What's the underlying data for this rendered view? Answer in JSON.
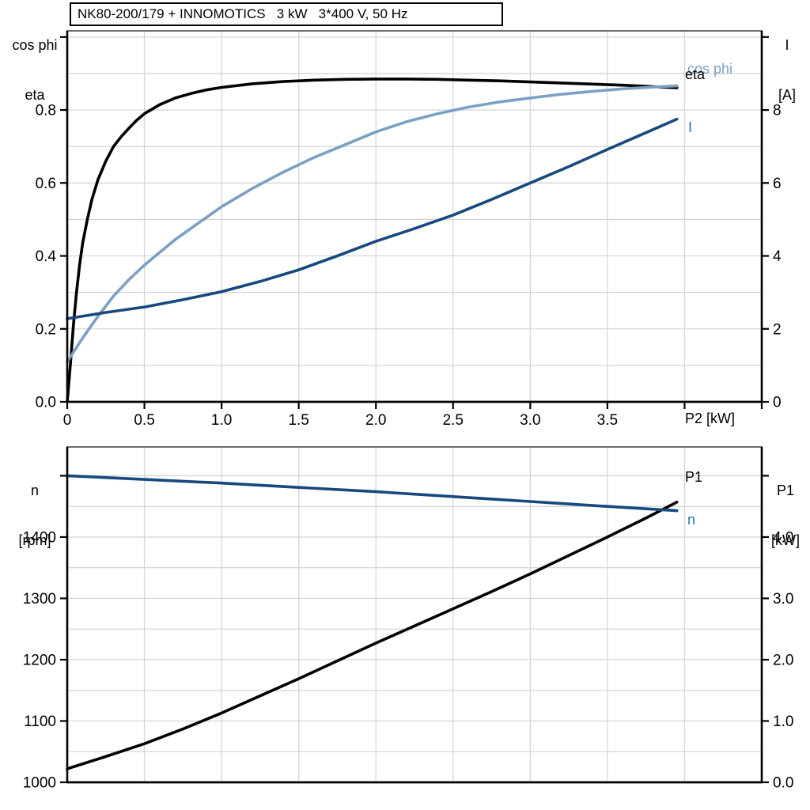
{
  "title": {
    "text": "NK80-200/179 + INNOMOTICS   3 kW   3*400 V, 50 Hz"
  },
  "colors": {
    "black": "#000000",
    "dark_blue": "#17497c",
    "light_blue": "#7aa0c4",
    "label_blue": "#2e72b0",
    "grid": "#d6d6d6",
    "axis": "#000000",
    "border_top": "#3c3c3c"
  },
  "top_chart_labels": {
    "left_axis_line1": "cos phi",
    "left_axis_line2": "eta",
    "right_axis_line1": "I",
    "right_axis_line2": "[A]",
    "x_axis": "P2 [kW]",
    "curve_cos_phi": "cos phi",
    "curve_eta": "eta",
    "curve_I": "I"
  },
  "bottom_chart_labels": {
    "left_axis_line1": "n",
    "left_axis_line2": "[rpm]",
    "right_axis_line1": "P1",
    "right_axis_line2": "[kW]",
    "curve_P1": "P1",
    "curve_n": "n"
  },
  "chart_data": [
    {
      "type": "line",
      "name": "motor-efficiency-cosphi-current",
      "xlabel": "P2 [kW]",
      "x_range": [
        0,
        4.5
      ],
      "left_axis": {
        "label": "cos phi / eta",
        "range": [
          0,
          1.017
        ]
      },
      "right_axis": {
        "label": "I [A]",
        "range": [
          0,
          10.17
        ]
      },
      "x_ticks": [
        {
          "v": 0.0,
          "label": "0"
        },
        {
          "v": 0.5,
          "label": "0.5"
        },
        {
          "v": 1.0,
          "label": "1.0"
        },
        {
          "v": 1.5,
          "label": "1.5"
        },
        {
          "v": 2.0,
          "label": "2.0"
        },
        {
          "v": 2.5,
          "label": "2.5"
        },
        {
          "v": 3.0,
          "label": "3.0"
        },
        {
          "v": 3.5,
          "label": "3.5"
        },
        {
          "v": 4.0,
          "label": ""
        },
        {
          "v": 4.5,
          "label": ""
        }
      ],
      "left_ticks": [
        {
          "v": 0.0,
          "label": "0.0"
        },
        {
          "v": 0.2,
          "label": "0.2"
        },
        {
          "v": 0.4,
          "label": "0.4"
        },
        {
          "v": 0.6,
          "label": "0.6"
        },
        {
          "v": 0.8,
          "label": "0.8"
        },
        {
          "v": 1.0,
          "label": ""
        }
      ],
      "right_ticks": [
        {
          "v": 0,
          "label": "0"
        },
        {
          "v": 2,
          "label": "2"
        },
        {
          "v": 4,
          "label": "4"
        },
        {
          "v": 6,
          "label": "6"
        },
        {
          "v": 8,
          "label": "8"
        },
        {
          "v": 10,
          "label": ""
        }
      ],
      "grid": {
        "x_step": 0.5,
        "y_left_step": 0.1
      },
      "series": [
        {
          "name": "eta",
          "axis": "left",
          "color_key": "black",
          "points": [
            [
              0,
              0
            ],
            [
              0.02,
              0.1
            ],
            [
              0.04,
              0.21
            ],
            [
              0.06,
              0.3
            ],
            [
              0.08,
              0.375
            ],
            [
              0.1,
              0.435
            ],
            [
              0.13,
              0.5
            ],
            [
              0.16,
              0.555
            ],
            [
              0.2,
              0.61
            ],
            [
              0.25,
              0.66
            ],
            [
              0.3,
              0.7
            ],
            [
              0.35,
              0.727
            ],
            [
              0.4,
              0.75
            ],
            [
              0.45,
              0.772
            ],
            [
              0.5,
              0.79
            ],
            [
              0.6,
              0.815
            ],
            [
              0.7,
              0.833
            ],
            [
              0.8,
              0.845
            ],
            [
              0.9,
              0.855
            ],
            [
              1.0,
              0.862
            ],
            [
              1.2,
              0.872
            ],
            [
              1.4,
              0.878
            ],
            [
              1.6,
              0.882
            ],
            [
              1.8,
              0.884
            ],
            [
              2.0,
              0.885
            ],
            [
              2.2,
              0.885
            ],
            [
              2.4,
              0.884
            ],
            [
              2.6,
              0.882
            ],
            [
              2.8,
              0.88
            ],
            [
              3.0,
              0.877
            ],
            [
              3.2,
              0.874
            ],
            [
              3.4,
              0.871
            ],
            [
              3.6,
              0.868
            ],
            [
              3.8,
              0.864
            ],
            [
              3.95,
              0.861
            ]
          ]
        },
        {
          "name": "cos phi",
          "axis": "left",
          "color_key": "light_blue",
          "points": [
            [
              0,
              0.11
            ],
            [
              0.1,
              0.175
            ],
            [
              0.2,
              0.235
            ],
            [
              0.3,
              0.29
            ],
            [
              0.4,
              0.335
            ],
            [
              0.5,
              0.375
            ],
            [
              0.6,
              0.41
            ],
            [
              0.7,
              0.445
            ],
            [
              0.8,
              0.475
            ],
            [
              0.9,
              0.505
            ],
            [
              1.0,
              0.535
            ],
            [
              1.2,
              0.585
            ],
            [
              1.4,
              0.63
            ],
            [
              1.6,
              0.67
            ],
            [
              1.8,
              0.705
            ],
            [
              2.0,
              0.74
            ],
            [
              2.2,
              0.768
            ],
            [
              2.4,
              0.79
            ],
            [
              2.6,
              0.808
            ],
            [
              2.8,
              0.822
            ],
            [
              3.0,
              0.833
            ],
            [
              3.2,
              0.843
            ],
            [
              3.4,
              0.851
            ],
            [
              3.6,
              0.858
            ],
            [
              3.8,
              0.863
            ],
            [
              3.95,
              0.866
            ]
          ]
        },
        {
          "name": "I",
          "axis": "right",
          "color_key": "dark_blue",
          "points": [
            [
              0,
              2.28
            ],
            [
              0.25,
              2.45
            ],
            [
              0.5,
              2.6
            ],
            [
              0.75,
              2.8
            ],
            [
              1.0,
              3.02
            ],
            [
              1.25,
              3.3
            ],
            [
              1.5,
              3.62
            ],
            [
              1.75,
              4.0
            ],
            [
              2.0,
              4.4
            ],
            [
              2.25,
              4.75
            ],
            [
              2.5,
              5.12
            ],
            [
              2.75,
              5.55
            ],
            [
              3.0,
              6.0
            ],
            [
              3.25,
              6.45
            ],
            [
              3.5,
              6.92
            ],
            [
              3.75,
              7.38
            ],
            [
              3.95,
              7.75
            ]
          ]
        }
      ]
    },
    {
      "type": "line",
      "name": "motor-speed-inputpower",
      "xlabel": "",
      "x_range": [
        0,
        4.5
      ],
      "left_axis": {
        "label": "n [rpm]",
        "range": [
          1000,
          1547
        ]
      },
      "right_axis": {
        "label": "P1 [kW]",
        "range": [
          0,
          5.47
        ]
      },
      "x_ticks": [],
      "left_ticks": [
        {
          "v": 1000,
          "label": "1000"
        },
        {
          "v": 1100,
          "label": "1100"
        },
        {
          "v": 1200,
          "label": "1200"
        },
        {
          "v": 1300,
          "label": "1300"
        },
        {
          "v": 1400,
          "label": "1400"
        },
        {
          "v": 1500,
          "label": ""
        }
      ],
      "right_ticks": [
        {
          "v": 0.0,
          "label": "0.0"
        },
        {
          "v": 1.0,
          "label": "1.0"
        },
        {
          "v": 2.0,
          "label": "2.0"
        },
        {
          "v": 3.0,
          "label": "3.0"
        },
        {
          "v": 4.0,
          "label": "4.0"
        },
        {
          "v": 5.0,
          "label": ""
        }
      ],
      "grid": {
        "x_step": 0.5,
        "y_left_step": 50
      },
      "series": [
        {
          "name": "P1",
          "axis": "right",
          "color_key": "black",
          "points": [
            [
              0,
              0.22
            ],
            [
              0.25,
              0.42
            ],
            [
              0.5,
              0.63
            ],
            [
              0.75,
              0.87
            ],
            [
              1.0,
              1.13
            ],
            [
              1.25,
              1.41
            ],
            [
              1.5,
              1.69
            ],
            [
              1.75,
              1.98
            ],
            [
              2.0,
              2.27
            ],
            [
              2.25,
              2.55
            ],
            [
              2.5,
              2.83
            ],
            [
              2.75,
              3.11
            ],
            [
              3.0,
              3.4
            ],
            [
              3.25,
              3.7
            ],
            [
              3.5,
              4.0
            ],
            [
              3.75,
              4.31
            ],
            [
              3.95,
              4.57
            ]
          ]
        },
        {
          "name": "n",
          "axis": "left",
          "color_key": "dark_blue",
          "points": [
            [
              0,
              1500
            ],
            [
              0.5,
              1494
            ],
            [
              1.0,
              1488
            ],
            [
              1.5,
              1481
            ],
            [
              2.0,
              1474
            ],
            [
              2.5,
              1466
            ],
            [
              3.0,
              1458
            ],
            [
              3.5,
              1450
            ],
            [
              3.95,
              1443
            ]
          ]
        }
      ]
    }
  ]
}
